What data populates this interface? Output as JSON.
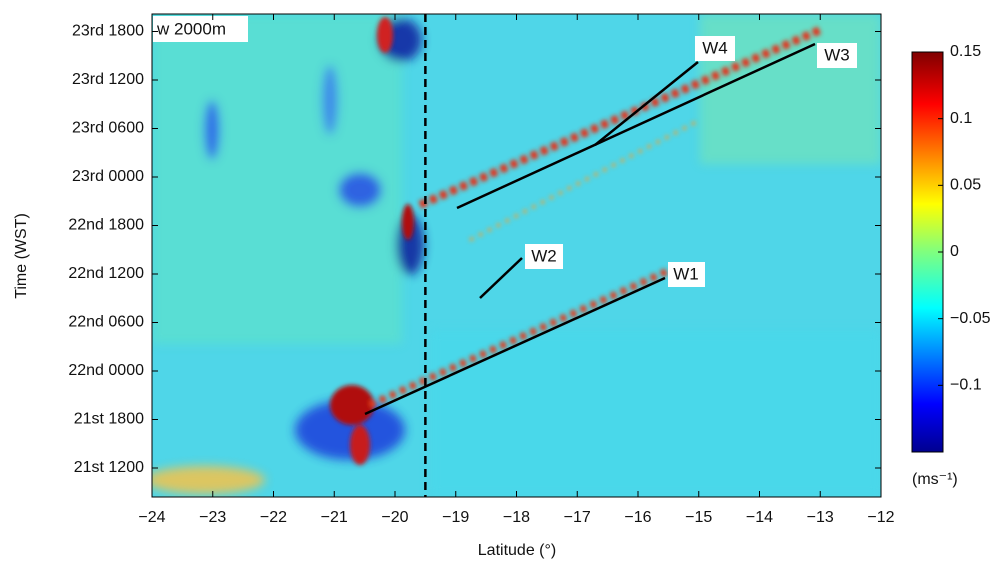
{
  "chart_data": {
    "type": "heatmap",
    "panel_label": "w 2000m",
    "x_label": "Latitude (°)",
    "y_label": "Time (WST)",
    "xlim": [
      -24,
      -12
    ],
    "xticks": [
      {
        "value": -24,
        "label": "−24"
      },
      {
        "value": -23,
        "label": "−23"
      },
      {
        "value": -22,
        "label": "−22"
      },
      {
        "value": -21,
        "label": "−21"
      },
      {
        "value": -20,
        "label": "−20"
      },
      {
        "value": -19,
        "label": "−19"
      },
      {
        "value": -18,
        "label": "−18"
      },
      {
        "value": -17,
        "label": "−17"
      },
      {
        "value": -16,
        "label": "−16"
      },
      {
        "value": -15,
        "label": "−15"
      },
      {
        "value": -14,
        "label": "−14"
      },
      {
        "value": -13,
        "label": "−13"
      },
      {
        "value": -12,
        "label": "−12"
      }
    ],
    "y_tick_labels": [
      "21st 1200",
      "21st 1800",
      "22nd 0000",
      "22nd 0600",
      "22nd 1200",
      "22nd 1800",
      "23rd 0000",
      "23rd 0600",
      "23rd 1200",
      "23rd 1800"
    ],
    "vline": -19.5,
    "colorbar": {
      "lim": [
        -0.15,
        0.15
      ],
      "ticks": [
        {
          "value": -0.1,
          "label": "−0.1"
        },
        {
          "value": -0.05,
          "label": "−0.05"
        },
        0,
        0.05,
        0.1,
        0.15
      ],
      "unit": "(ms⁻¹)"
    },
    "annotations": [
      "W1",
      "W2",
      "W3",
      "W4"
    ]
  }
}
